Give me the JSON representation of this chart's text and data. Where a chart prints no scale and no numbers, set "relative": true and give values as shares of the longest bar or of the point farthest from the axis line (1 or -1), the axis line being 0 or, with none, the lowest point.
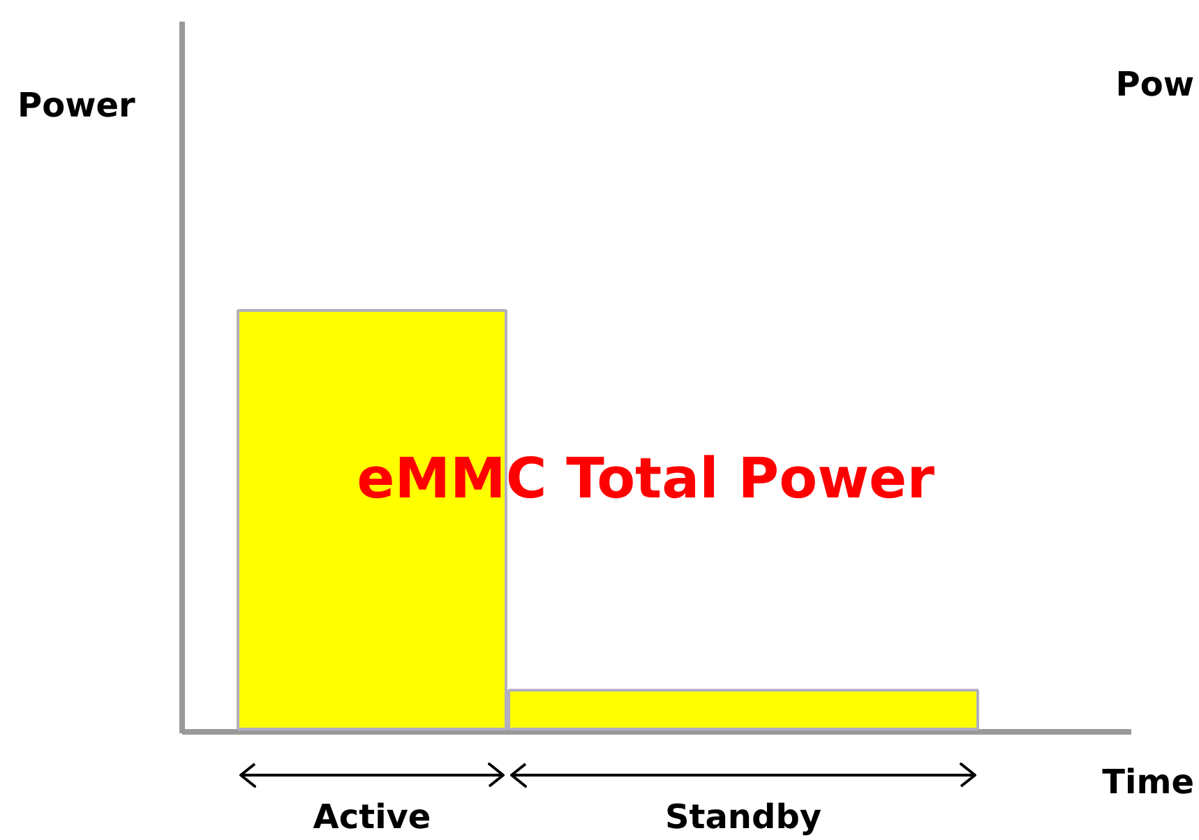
{
  "chart_data": {
    "type": "bar",
    "relative": true,
    "categories": [
      "Active",
      "Standby"
    ],
    "values": [
      1,
      0.093
    ],
    "color": "#ffff00",
    "xlabel": "Time",
    "annotations": [
      "eMMC Total Power",
      "Pow",
      "Power"
    ],
    "grid": false
  }
}
